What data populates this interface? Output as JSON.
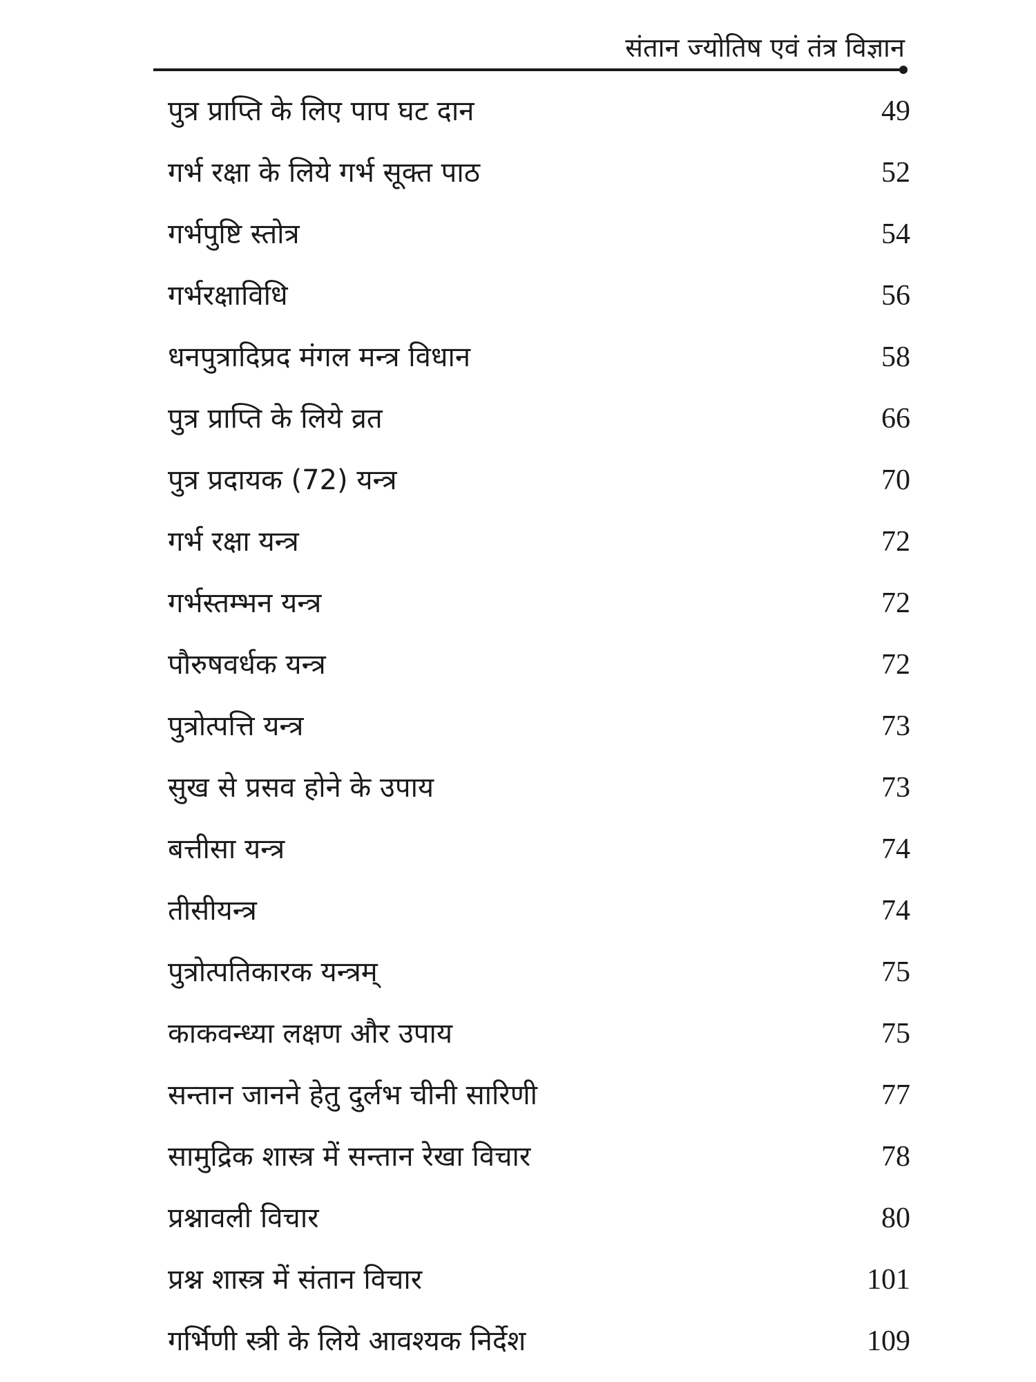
{
  "header": {
    "title": "संतान ज्योतिष एवं तंत्र विज्ञान"
  },
  "toc": [
    {
      "title": "पुत्र प्राप्ति के लिए पाप घट दान",
      "page": "49"
    },
    {
      "title": "गर्भ रक्षा के लिये गर्भ सूक्त पाठ",
      "page": "52"
    },
    {
      "title": "गर्भपुष्टि स्तोत्र",
      "page": "54"
    },
    {
      "title": "गर्भरक्षाविधि",
      "page": "56"
    },
    {
      "title": "धनपुत्रादिप्रद मंगल मन्त्र विधान",
      "page": "58"
    },
    {
      "title": "पुत्र प्राप्ति के लिये व्रत",
      "page": "66"
    },
    {
      "title": "पुत्र प्रदायक (72) यन्त्र",
      "page": "70"
    },
    {
      "title": "गर्भ रक्षा यन्त्र",
      "page": "72"
    },
    {
      "title": "गर्भस्तम्भन यन्त्र",
      "page": "72"
    },
    {
      "title": "पौरुषवर्धक यन्त्र",
      "page": "72"
    },
    {
      "title": "पुत्रोत्पत्ति यन्त्र",
      "page": "73"
    },
    {
      "title": "सुख से प्रसव होने के उपाय",
      "page": "73"
    },
    {
      "title": "बत्तीसा यन्त्र",
      "page": "74"
    },
    {
      "title": "तीसीयन्त्र",
      "page": "74"
    },
    {
      "title": "पुत्रोत्पतिकारक यन्त्रम्",
      "page": "75"
    },
    {
      "title": "काकवन्ध्या लक्षण और उपाय",
      "page": "75"
    },
    {
      "title": "सन्तान जानने हेतु दुर्लभ चीनी सारिणी",
      "page": "77"
    },
    {
      "title": "सामुद्रिक शास्त्र में सन्तान रेखा विचार",
      "page": "78"
    },
    {
      "title": "प्रश्नावली विचार",
      "page": "80"
    },
    {
      "title": "प्रश्न शास्त्र में संतान विचार",
      "page": "101"
    },
    {
      "title": "गर्भिणी स्त्री के लिये आवश्यक निर्देश",
      "page": "109"
    }
  ]
}
